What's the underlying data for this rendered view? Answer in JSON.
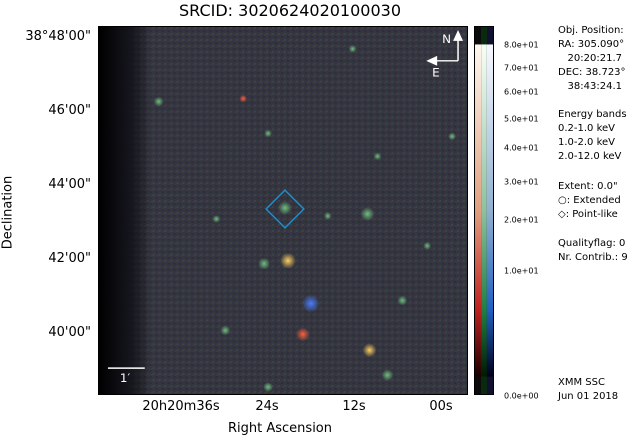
{
  "title": "SRCID:  3020624020100030",
  "axes": {
    "ylabel": "Declination",
    "xlabel": "Right Ascension",
    "yticks": [
      "38°48'00\"",
      "46'00\"",
      "44'00\"",
      "42'00\"",
      "40'00\""
    ],
    "xticks": [
      "20h20m36s",
      "24s",
      "12s",
      "00s"
    ]
  },
  "compass": {
    "north": "N",
    "east": "E"
  },
  "scalebar": {
    "label": "1′"
  },
  "colorbar": {
    "ticks": [
      "8.0e+01",
      "7.0e+01",
      "6.0e+01",
      "5.0e+01",
      "4.0e+01",
      "3.0e+01",
      "2.0e+01",
      "1.0e+01",
      "0.0e+00"
    ]
  },
  "info": {
    "position_header": "Obj. Position:",
    "ra_deg": "RA: 305.090°",
    "ra_hms": "   20:20:21.7",
    "dec_deg": "DEC: 38.723°",
    "dec_dms": "   38:43:24.1",
    "bands_header": "Energy bands:",
    "band1": "0.2-1.0 keV",
    "band2": "1.0-2.0 keV",
    "band3": "2.0-12.0 keV",
    "extent": "Extent: 0.0\"",
    "extended": "○: Extended",
    "pointlike": "◇: Point-like",
    "qualityflag": "Qualityflag: 0",
    "contrib": "Nr. Contrib.: 9",
    "footer1": "XMM SSC",
    "footer2": "Jun 01 2018"
  },
  "colors": {
    "marker": "#1e90d0",
    "sky_bg": "#2a2a30"
  }
}
